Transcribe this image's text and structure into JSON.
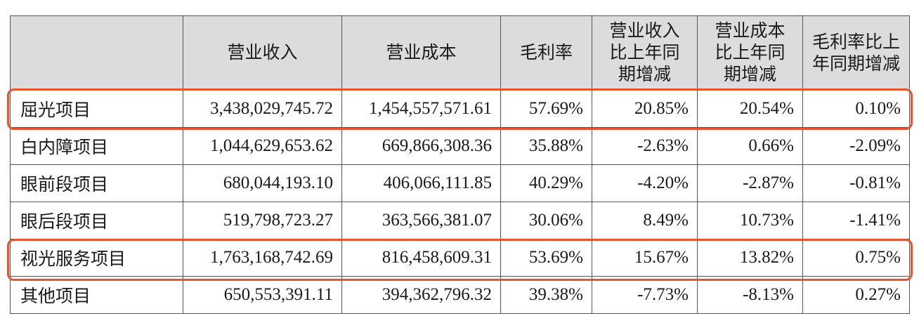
{
  "table": {
    "headers": [
      "",
      "营业收入",
      "营业成本",
      "毛利率",
      "营业收入比上年同期增减",
      "营业成本比上年同期增减",
      "毛利率比上年同期增减"
    ],
    "rows": [
      {
        "name": "屈光项目",
        "revenue": "3,438,029,745.72",
        "cost": "1,454,557,571.61",
        "margin": "57.69%",
        "rev_change": "20.85%",
        "cost_change": "20.54%",
        "margin_change": "0.10%",
        "highlighted": true
      },
      {
        "name": "白内障项目",
        "revenue": "1,044,629,653.62",
        "cost": "669,866,308.36",
        "margin": "35.88%",
        "rev_change": "-2.63%",
        "cost_change": "0.66%",
        "margin_change": "-2.09%",
        "highlighted": false
      },
      {
        "name": "眼前段项目",
        "revenue": "680,044,193.10",
        "cost": "406,066,111.85",
        "margin": "40.29%",
        "rev_change": "-4.20%",
        "cost_change": "-2.87%",
        "margin_change": "-0.81%",
        "highlighted": false
      },
      {
        "name": "眼后段项目",
        "revenue": "519,798,723.27",
        "cost": "363,566,381.07",
        "margin": "30.06%",
        "rev_change": "8.49%",
        "cost_change": "10.73%",
        "margin_change": "-1.41%",
        "highlighted": false
      },
      {
        "name": "视光服务项目",
        "revenue": "1,763,168,742.69",
        "cost": "816,458,609.31",
        "margin": "53.69%",
        "rev_change": "15.67%",
        "cost_change": "13.82%",
        "margin_change": "0.75%",
        "highlighted": true
      },
      {
        "name": "其他项目",
        "revenue": "650,553,391.11",
        "cost": "394,362,796.32",
        "margin": "39.38%",
        "rev_change": "-7.73%",
        "cost_change": "-8.13%",
        "margin_change": "0.27%",
        "highlighted": false
      }
    ]
  },
  "colors": {
    "header_background": "#dcdcdc",
    "highlight_border": "#e8542f",
    "grid_line": "#555555"
  }
}
